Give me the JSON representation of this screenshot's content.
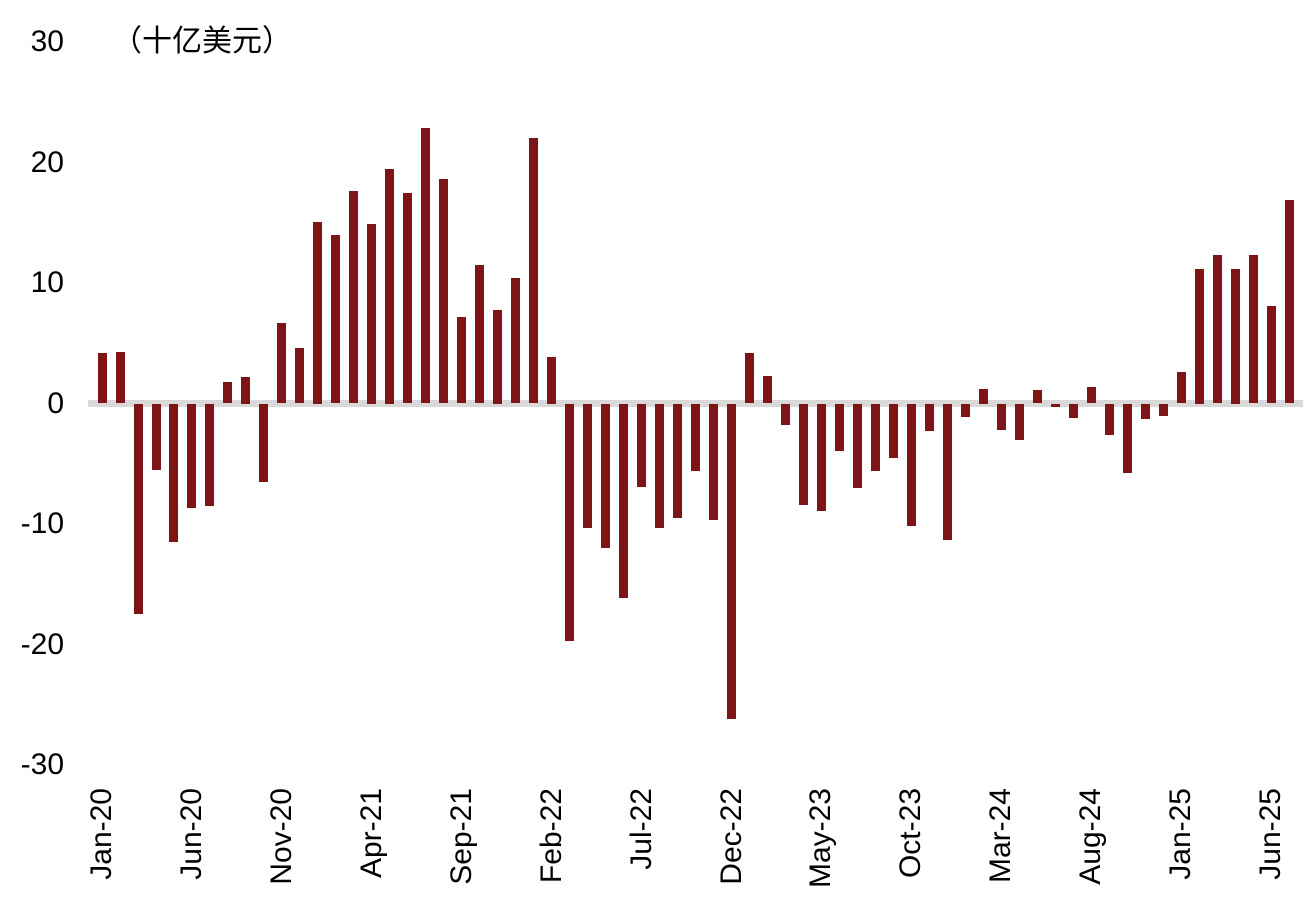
{
  "chart_data": {
    "type": "bar",
    "title": "",
    "unit_label": "（十亿美元）",
    "xlabel": "",
    "ylabel": "",
    "ylim": [
      -30,
      30
    ],
    "y_ticks": [
      30,
      20,
      10,
      0,
      -10,
      -20,
      -30
    ],
    "grid": false,
    "legend": "none",
    "bar_color": "#7F1416",
    "zero_line_color": "#D9D9D9",
    "text_color": "#000000",
    "tick_every": 5,
    "tick_labels": [
      "Jan-20",
      "Jun-20",
      "Nov-20",
      "Apr-21",
      "Sep-21",
      "Feb-22",
      "Jul-22",
      "Dec-22",
      "May-23",
      "Oct-23",
      "Mar-24",
      "Aug-24",
      "Jan-25",
      "Jun-25"
    ],
    "x": [
      "Jan-20",
      "Feb-20",
      "Mar-20",
      "Apr-20",
      "May-20",
      "Jun-20",
      "Jul-20",
      "Aug-20",
      "Sep-20",
      "Oct-20",
      "Nov-20",
      "Dec-20",
      "Jan-21",
      "Feb-21",
      "Mar-21",
      "Apr-21",
      "May-21",
      "Jun-21",
      "Jul-21",
      "Aug-21",
      "Sep-21",
      "Oct-21",
      "Nov-21",
      "Dec-21",
      "Jan-22",
      "Feb-22",
      "Mar-22",
      "Apr-22",
      "May-22",
      "Jun-22",
      "Jul-22",
      "Aug-22",
      "Sep-22",
      "Oct-22",
      "Nov-22",
      "Dec-22",
      "Jan-23",
      "Feb-23",
      "Mar-23",
      "Apr-23",
      "May-23",
      "Jun-23",
      "Jul-23",
      "Aug-23",
      "Sep-23",
      "Oct-23",
      "Nov-23",
      "Dec-23",
      "Jan-24",
      "Feb-24",
      "Mar-24",
      "Apr-24",
      "May-24",
      "Jun-24",
      "Jul-24",
      "Aug-24",
      "Sep-24",
      "Oct-24",
      "Nov-24",
      "Dec-24",
      "Jan-25",
      "Feb-25",
      "Mar-25",
      "Apr-25",
      "May-25",
      "Jun-25",
      "Jul-25"
    ],
    "values": [
      4.2,
      4.3,
      -17.5,
      -5.5,
      -11.5,
      -8.7,
      -8.5,
      1.8,
      2.2,
      -6.5,
      6.7,
      4.6,
      15.1,
      14.0,
      17.6,
      14.9,
      19.5,
      17.5,
      22.9,
      18.6,
      7.2,
      11.5,
      7.8,
      10.4,
      22.0,
      3.9,
      -19.7,
      -10.3,
      -12.0,
      -16.1,
      -6.9,
      -10.3,
      -9.5,
      -5.6,
      -9.7,
      -26.2,
      4.2,
      2.3,
      -1.8,
      -8.4,
      -8.9,
      -3.9,
      -7.0,
      -5.6,
      -4.5,
      -10.2,
      -2.3,
      -11.3,
      -1.1,
      1.2,
      -2.2,
      -3.0,
      1.1,
      -0.3,
      -1.2,
      1.4,
      -2.6,
      -5.8,
      -1.3,
      -1.0,
      2.6,
      11.2,
      12.3,
      11.2,
      12.3,
      8.1,
      16.9
    ]
  }
}
